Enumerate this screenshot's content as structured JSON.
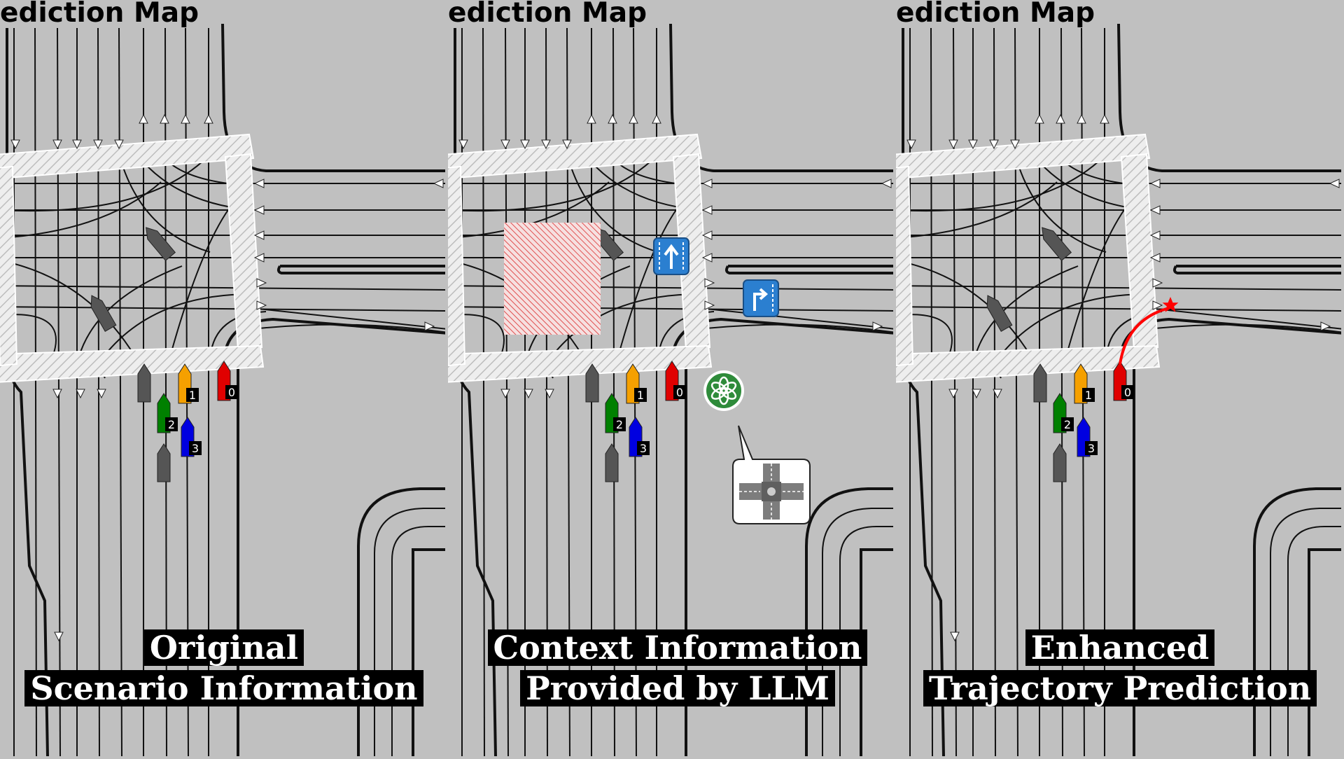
{
  "panels": [
    {
      "id": "original",
      "title": "ediction Map",
      "caption": [
        "Original",
        "Scenario Information"
      ],
      "context": false,
      "prediction": false
    },
    {
      "id": "context",
      "title": "ediction Map",
      "caption": [
        "Context Information",
        "Provided by LLM"
      ],
      "context": true,
      "prediction": false
    },
    {
      "id": "enhanced",
      "title": "ediction Map",
      "caption": [
        "Enhanced",
        "Trajectory Prediction"
      ],
      "context": false,
      "prediction": true
    }
  ],
  "agents": [
    {
      "id": "0",
      "label": "0",
      "color": "#e00000"
    },
    {
      "id": "1",
      "label": "1",
      "color": "#f5a000"
    },
    {
      "id": "2",
      "label": "2",
      "color": "#008000"
    },
    {
      "id": "3",
      "label": "3",
      "color": "#0000e0"
    }
  ],
  "icons": {
    "traffic_signs": [
      "straight-lane-sign-icon",
      "right-turn-lane-sign-icon"
    ],
    "llm": "openai-logo-icon",
    "intersection": "four-way-intersection-icon",
    "obstacle": "blocked-area-hatch"
  },
  "colors": {
    "background": "#c0c0c0",
    "lane": "#111111",
    "crosswalk": "#e8e8e8",
    "prediction": "#ff0000",
    "sign": "#2b7fd0",
    "llm": "#2e8b3a",
    "blocked": "#e05050"
  }
}
